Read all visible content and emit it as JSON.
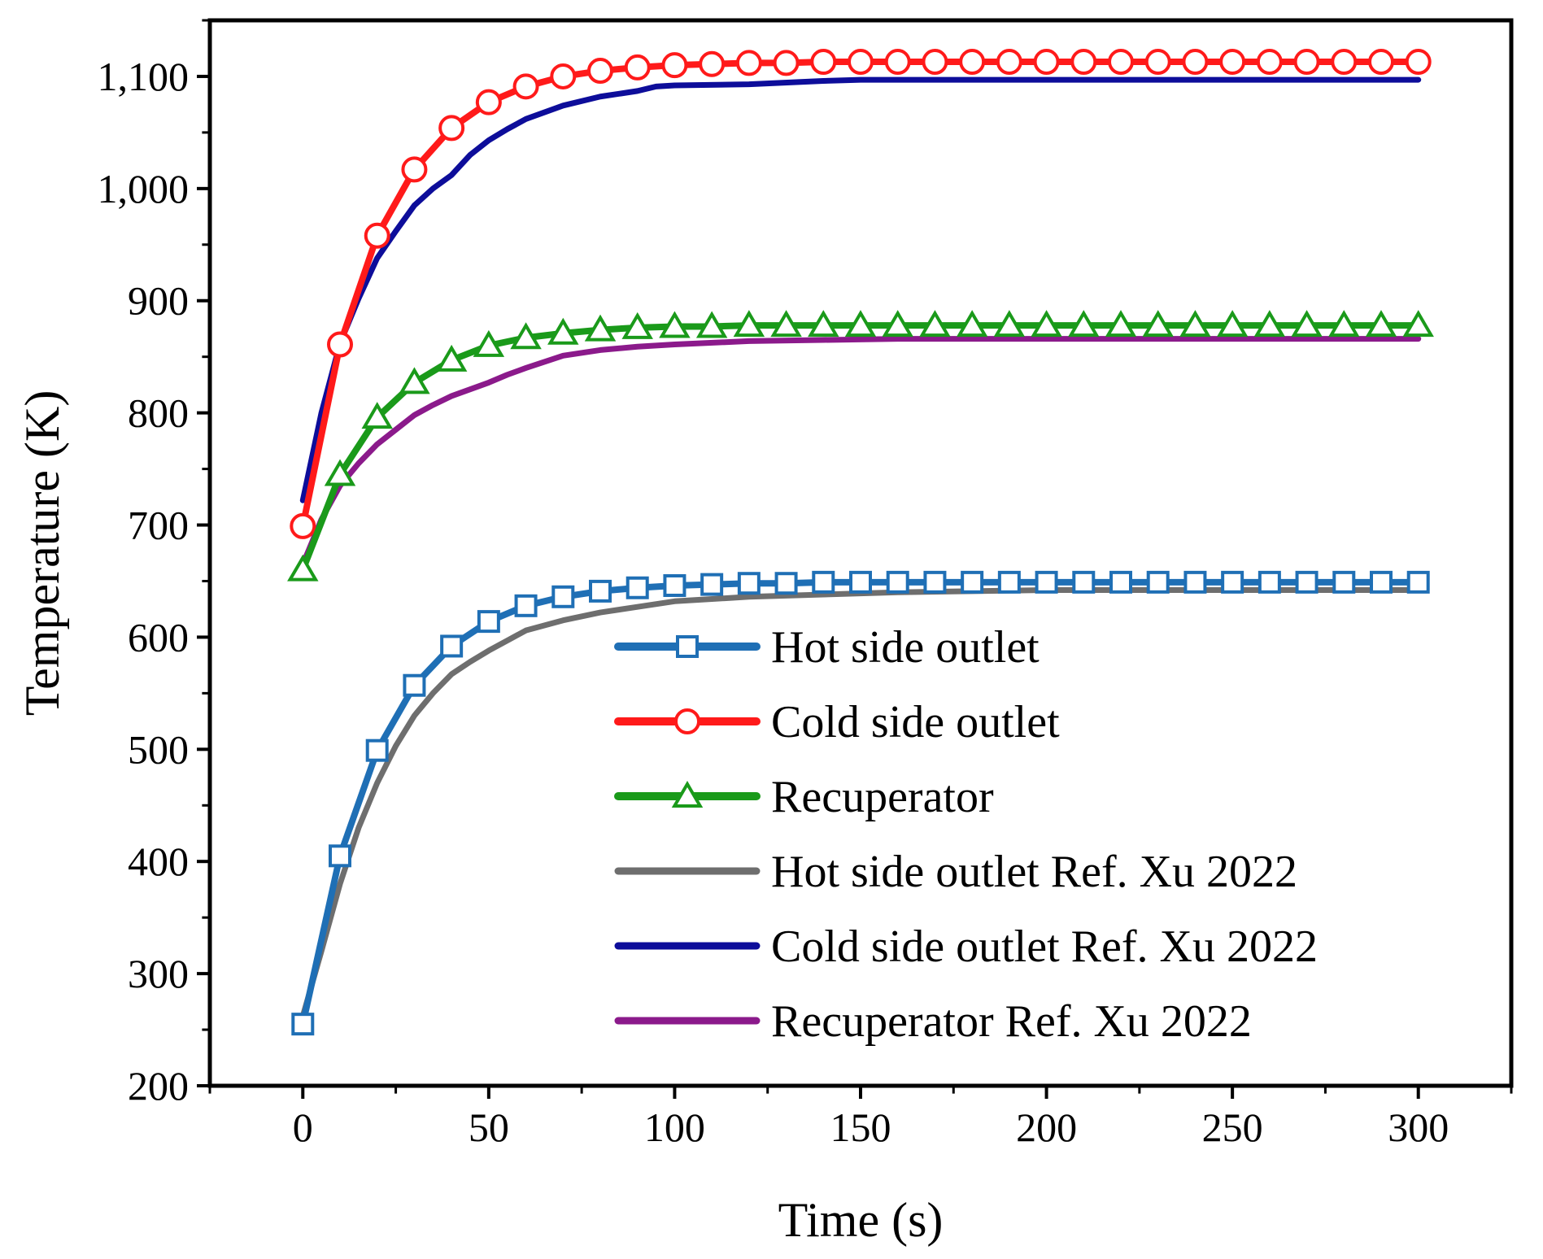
{
  "chart_data": {
    "type": "line",
    "title": "",
    "xlabel": "Time (s)",
    "ylabel": "Temperature (K)",
    "xlim": [
      -25,
      325
    ],
    "ylim": [
      200,
      1150
    ],
    "xticks": [
      0,
      50,
      100,
      150,
      200,
      250,
      300
    ],
    "xtick_labels": [
      "0",
      "50",
      "100",
      "150",
      "200",
      "250",
      "300"
    ],
    "yticks": [
      200,
      300,
      400,
      500,
      600,
      700,
      800,
      900,
      1000,
      1100
    ],
    "ytick_labels": [
      "200",
      "300",
      "400",
      "500",
      "600",
      "700",
      "800",
      "900",
      "1,000",
      "1,100"
    ],
    "grid": false,
    "legend_position": "bottom-right",
    "series": [
      {
        "name": "Hot side outlet",
        "color": "#1f6fb5",
        "marker": "square",
        "x": [
          0,
          10,
          20,
          30,
          40,
          50,
          60,
          70,
          80,
          90,
          100,
          110,
          120,
          130,
          140,
          150,
          160,
          170,
          180,
          190,
          200,
          210,
          220,
          230,
          240,
          250,
          260,
          270,
          280,
          290,
          300
        ],
        "values": [
          255,
          405,
          499,
          557,
          592,
          614,
          628,
          636,
          641,
          644,
          646,
          647,
          648,
          648,
          649,
          649,
          649,
          649,
          649,
          649,
          649,
          649,
          649,
          649,
          649,
          649,
          649,
          649,
          649,
          649,
          649
        ]
      },
      {
        "name": "Cold side outlet",
        "color": "#ff1a1a",
        "marker": "circle",
        "x": [
          0,
          10,
          20,
          30,
          40,
          50,
          60,
          70,
          80,
          90,
          100,
          110,
          120,
          130,
          140,
          150,
          160,
          170,
          180,
          190,
          200,
          210,
          220,
          230,
          240,
          250,
          260,
          270,
          280,
          290,
          300
        ],
        "values": [
          699,
          861,
          958,
          1017,
          1054,
          1077,
          1091,
          1100,
          1105,
          1108,
          1110,
          1111,
          1112,
          1112,
          1113,
          1113,
          1113,
          1113,
          1113,
          1113,
          1113,
          1113,
          1113,
          1113,
          1113,
          1113,
          1113,
          1113,
          1113,
          1113,
          1113
        ]
      },
      {
        "name": "Recuperator",
        "color": "#1a9a1a",
        "marker": "triangle",
        "x": [
          0,
          10,
          20,
          30,
          40,
          50,
          60,
          70,
          80,
          90,
          100,
          110,
          120,
          130,
          140,
          150,
          160,
          170,
          180,
          190,
          200,
          210,
          220,
          230,
          240,
          250,
          260,
          270,
          280,
          290,
          300
        ],
        "values": [
          660,
          745,
          796,
          827,
          847,
          860,
          867,
          871,
          874,
          876,
          877,
          877,
          878,
          878,
          878,
          878,
          878,
          878,
          878,
          878,
          878,
          878,
          878,
          878,
          878,
          878,
          878,
          878,
          878,
          878,
          878
        ]
      },
      {
        "name": "Hot side outlet Ref. Xu 2022",
        "color": "#6e6e6e",
        "marker": "none",
        "x": [
          0,
          5,
          10,
          15,
          20,
          25,
          30,
          35,
          40,
          45,
          50,
          55,
          60,
          70,
          80,
          90,
          100,
          120,
          140,
          160,
          180,
          200,
          250,
          300
        ],
        "values": [
          262,
          320,
          380,
          430,
          470,
          503,
          530,
          550,
          567,
          578,
          588,
          597,
          606,
          615,
          622,
          627,
          632,
          636,
          638,
          640,
          641,
          642,
          642,
          642
        ]
      },
      {
        "name": "Cold side outlet Ref. Xu 2022",
        "color": "#0d0d9a",
        "marker": "none",
        "x": [
          0,
          5,
          10,
          15,
          20,
          25,
          30,
          35,
          40,
          45,
          50,
          55,
          60,
          70,
          80,
          90,
          95,
          100,
          120,
          140,
          150,
          200,
          250,
          300
        ],
        "values": [
          722,
          800,
          862,
          902,
          938,
          962,
          985,
          1000,
          1012,
          1030,
          1043,
          1053,
          1062,
          1074,
          1082,
          1087,
          1091,
          1092,
          1093,
          1096,
          1097,
          1097,
          1097,
          1097
        ]
      },
      {
        "name": "Recuperator Ref. Xu 2022",
        "color": "#8b1a8b",
        "marker": "none",
        "x": [
          0,
          5,
          10,
          15,
          20,
          25,
          30,
          35,
          40,
          45,
          50,
          55,
          60,
          70,
          80,
          90,
          100,
          120,
          140,
          160,
          200,
          250,
          300
        ],
        "values": [
          665,
          705,
          735,
          755,
          772,
          785,
          798,
          807,
          815,
          821,
          827,
          834,
          840,
          851,
          856,
          859,
          861,
          864,
          865,
          866,
          866,
          866,
          866
        ]
      }
    ]
  }
}
